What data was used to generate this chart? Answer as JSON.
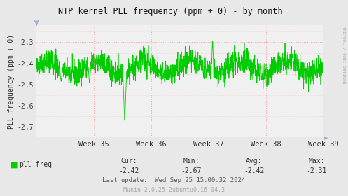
{
  "title": "NTP kernel PLL frequency (ppm + 0) - by month",
  "ylabel": "PLL frequency (ppm + 0)",
  "bg_color": "#e8e8e8",
  "plot_bg_color": "#f0f0f0",
  "line_color": "#00cc00",
  "grid_color": "#ff9999",
  "x_tick_labels": [
    "Week 35",
    "Week 36",
    "Week 37",
    "Week 38",
    "Week 39"
  ],
  "ylim": [
    -2.75,
    -2.22
  ],
  "yticks": [
    -2.3,
    -2.4,
    -2.5,
    -2.6,
    -2.7
  ],
  "legend_label": "pll-freq",
  "legend_color": "#00cc00",
  "cur": "-2.42",
  "min_val": "-2.67",
  "avg": "-2.42",
  "max_val": "-2.31",
  "last_update": "Wed Sep 25 15:00:32 2024",
  "footer": "Munin 2.0.25-2ubuntu0.16.04.3",
  "rrdtool_label": "RRDTOOL / TOBI OETIKER",
  "seed": 42
}
